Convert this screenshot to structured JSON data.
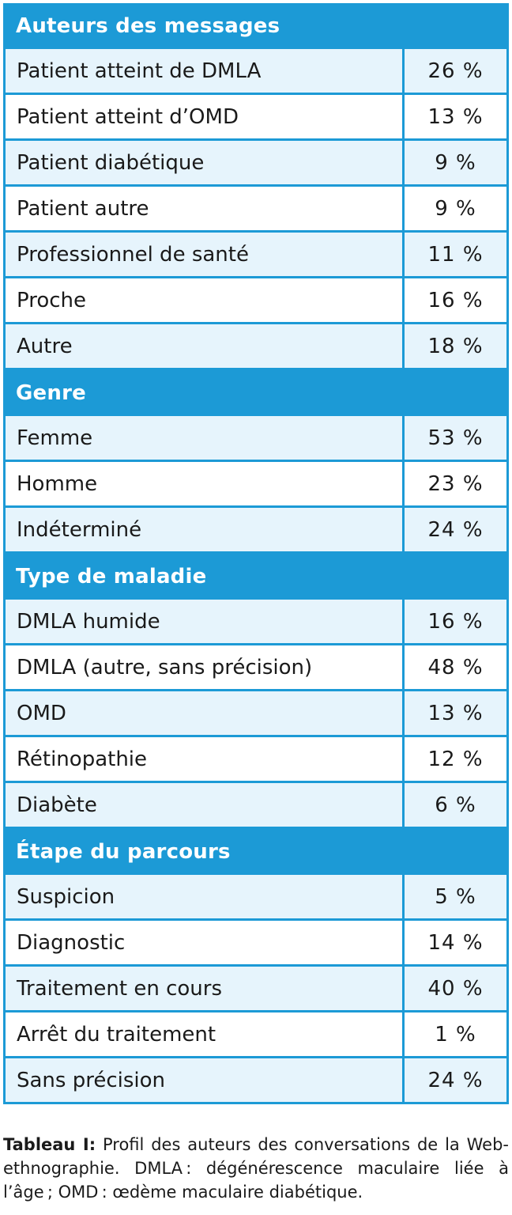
{
  "sections": [
    {
      "title": "Auteurs des messages",
      "rows": [
        {
          "label": "Patient atteint de DMLA",
          "value": "26 %"
        },
        {
          "label": "Patient atteint d’OMD",
          "value": "13 %"
        },
        {
          "label": "Patient diabétique",
          "value": "9 %"
        },
        {
          "label": "Patient autre",
          "value": "9 %"
        },
        {
          "label": "Professionnel de santé",
          "value": "11 %"
        },
        {
          "label": "Proche",
          "value": "16 %"
        },
        {
          "label": "Autre",
          "value": "18 %"
        }
      ]
    },
    {
      "title": "Genre",
      "rows": [
        {
          "label": "Femme",
          "value": "53 %"
        },
        {
          "label": "Homme",
          "value": "23 %"
        },
        {
          "label": "Indéterminé",
          "value": "24 %"
        }
      ]
    },
    {
      "title": "Type de maladie",
      "rows": [
        {
          "label": "DMLA humide",
          "value": "16 %"
        },
        {
          "label": "DMLA (autre, sans précision)",
          "value": "48 %"
        },
        {
          "label": "OMD",
          "value": "13 %"
        },
        {
          "label": "Rétinopathie",
          "value": "12 %"
        },
        {
          "label": "Diabète",
          "value": "6 %"
        }
      ]
    },
    {
      "title": "Étape du parcours",
      "rows": [
        {
          "label": "Suspicion",
          "value": "5 %"
        },
        {
          "label": "Diagnostic",
          "value": "14 %"
        },
        {
          "label": "Traitement en cours",
          "value": "40 %"
        },
        {
          "label": "Arrêt du traitement",
          "value": "1 %"
        },
        {
          "label": "Sans précision",
          "value": "24 %"
        }
      ]
    }
  ],
  "caption": {
    "title": "Tableau I:",
    "text": " Profil des auteurs des conversations de la Web-ethnographie. DMLA : dégénérescence maculaire liée à l’âge ; OMD : œdème maculaire diabétique."
  },
  "colors": {
    "accent": "#1c9ad6",
    "row_shade": "#e6f4fc",
    "row_plain": "#ffffff"
  }
}
